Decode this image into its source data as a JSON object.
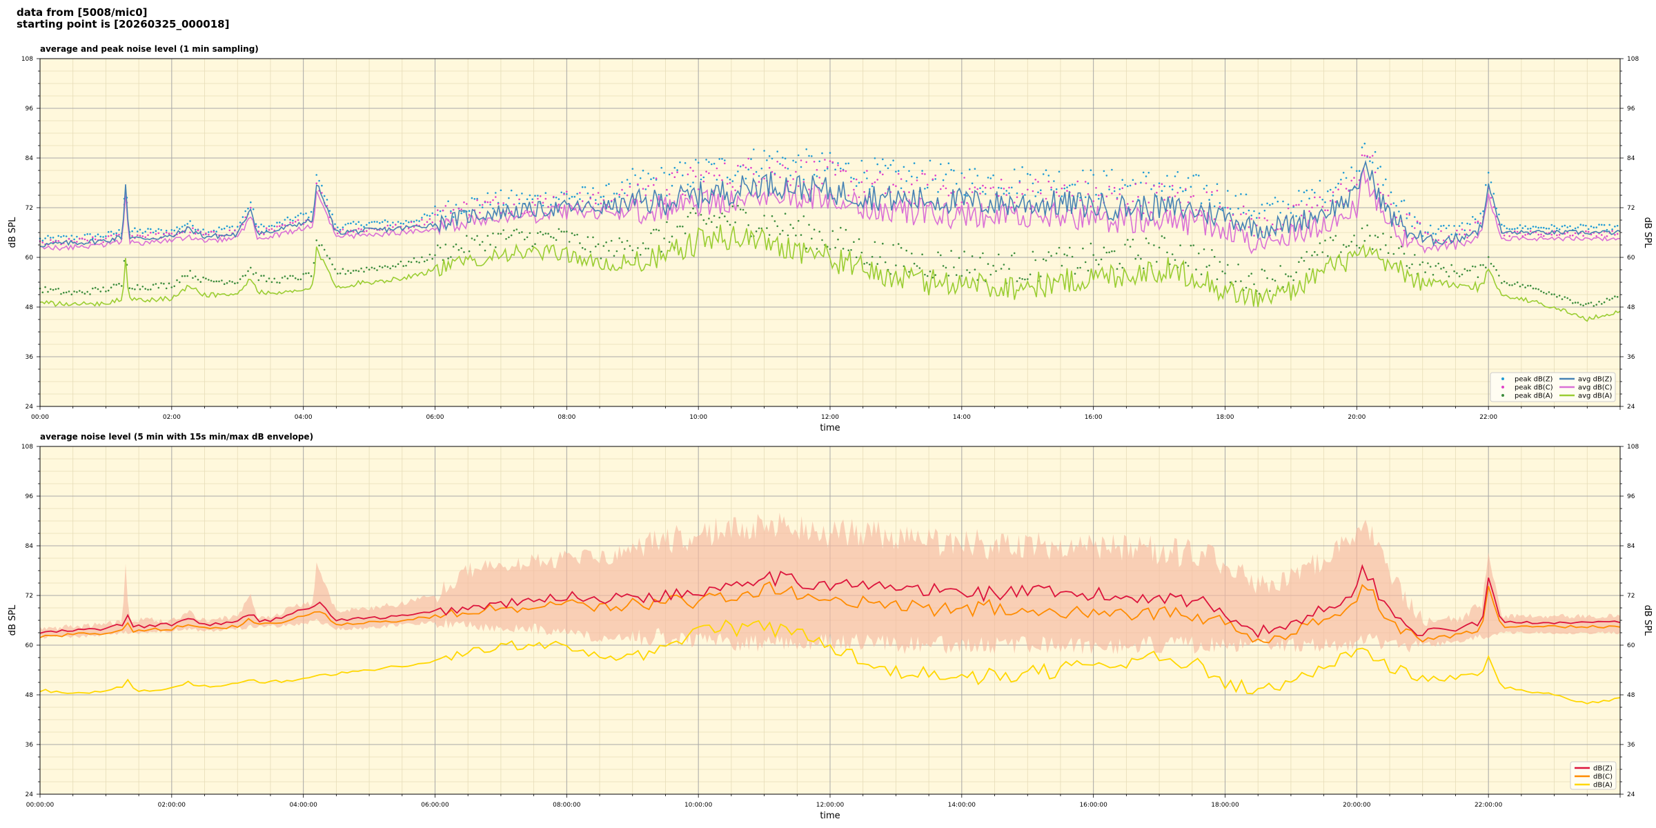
{
  "header": {
    "line1": "data from [5008/mic0]",
    "line2": "starting point is [20260325_000018]"
  },
  "colors": {
    "background": "#fff8dc",
    "peak_z": "#1f9bd4",
    "peak_c": "#e040c8",
    "peak_a": "#3c8c3c",
    "avg_z": "#4682b4",
    "avg_c": "#da70d6",
    "avg_a": "#9acd32",
    "dbz": "#dc143c",
    "dbc": "#ff8c00",
    "dba": "#ffd700",
    "envelope": "#f6b8a0"
  },
  "chart_data": [
    {
      "type": "line",
      "title": "average and peak noise level (1 min sampling)",
      "xlabel": "time",
      "ylabel": "dB SPL",
      "ylim": [
        24,
        108
      ],
      "xlim_hours": [
        0,
        24
      ],
      "yticks": [
        "24",
        "36",
        "48",
        "60",
        "72",
        "84",
        "96",
        "108"
      ],
      "xtick_labels": [
        "00:00",
        "02:00",
        "04:00",
        "06:00",
        "08:00",
        "10:00",
        "12:00",
        "14:00",
        "16:00",
        "18:00",
        "20:00",
        "22:00"
      ],
      "grid": true,
      "legend_position": "bottom-right",
      "legend": [
        "peak dB(Z)",
        "peak dB(C)",
        "peak dB(A)",
        "avg dB(Z)",
        "avg dB(C)",
        "avg dB(A)"
      ],
      "hours": [
        0,
        0.5,
        1,
        1.25,
        1.3,
        1.35,
        1.5,
        2,
        2.25,
        2.5,
        3,
        3.2,
        3.3,
        3.5,
        4,
        4.15,
        4.2,
        4.5,
        5,
        5.5,
        6,
        6.5,
        7,
        7.5,
        8,
        8.5,
        9,
        9.5,
        10,
        10.5,
        11,
        11.5,
        12,
        12.5,
        13,
        13.5,
        14,
        14.5,
        15,
        15.5,
        16,
        16.5,
        17,
        17.5,
        18,
        18.5,
        19,
        19.5,
        20,
        20.1,
        20.5,
        21,
        21.5,
        21.9,
        22,
        22.2,
        22.5,
        23,
        23.5,
        24
      ],
      "series": [
        {
          "name": "avg dB(Z)",
          "values": [
            63,
            63.5,
            64,
            65,
            78,
            65,
            64.5,
            65,
            67,
            65,
            65.5,
            72,
            66,
            66,
            68.5,
            69,
            78,
            66,
            66.5,
            67,
            68,
            70,
            71,
            71.5,
            72,
            72,
            73,
            73.5,
            75,
            76,
            78,
            77,
            76,
            75,
            74,
            74,
            73.5,
            73,
            73,
            73,
            72.5,
            72,
            72,
            71.5,
            70,
            67,
            68,
            71,
            75,
            83,
            70,
            64,
            64.5,
            67,
            78,
            66,
            66,
            66,
            66,
            66
          ]
        },
        {
          "name": "avg dB(C)",
          "values": [
            62,
            62.5,
            63,
            64,
            76,
            64,
            63.5,
            64,
            65,
            64,
            64.5,
            70,
            65,
            65,
            67,
            67.5,
            76,
            65,
            65.5,
            66,
            67,
            69,
            70,
            70,
            71,
            70.5,
            71,
            72,
            73,
            74,
            76,
            75,
            74,
            72,
            71,
            71,
            70,
            70,
            70,
            70,
            69.5,
            69,
            69,
            68.5,
            67,
            62,
            65,
            68,
            72,
            80,
            67,
            62,
            63,
            65.5,
            75,
            64.5,
            64.5,
            64.5,
            64.5,
            64.5
          ]
        },
        {
          "name": "avg dB(A)",
          "values": [
            49,
            48.5,
            49,
            50,
            60,
            50,
            49.5,
            50,
            53,
            51,
            51,
            55,
            52,
            51,
            52,
            53,
            62,
            53,
            54,
            55,
            57,
            59,
            61,
            61,
            61,
            58,
            59,
            60,
            64,
            65,
            64,
            62,
            60,
            57,
            55,
            54,
            54,
            53,
            53,
            54,
            55,
            56,
            57,
            56,
            52,
            50,
            52,
            57,
            60,
            61,
            58,
            54,
            53,
            53,
            57,
            51,
            50,
            48,
            45,
            47
          ]
        },
        {
          "name": "peak dB(Z)",
          "values": [
            64,
            64.5,
            65,
            66,
            80,
            66,
            66,
            66,
            68,
            66,
            67,
            73,
            67,
            67,
            70,
            70,
            80,
            67,
            68,
            68,
            70,
            72,
            73,
            73,
            74,
            74,
            76,
            77,
            79,
            80,
            82,
            81,
            80,
            79,
            78,
            78,
            77,
            77,
            77,
            77,
            76,
            76,
            76,
            75,
            73,
            70,
            71,
            75,
            79,
            88,
            73,
            66,
            66,
            69,
            80,
            67,
            67,
            67,
            67,
            67
          ]
        },
        {
          "name": "peak dB(C)",
          "values": [
            63,
            63.5,
            64,
            65,
            78,
            65,
            65,
            65,
            66.5,
            65,
            66,
            71,
            66,
            66,
            68.5,
            69,
            78,
            66,
            66.5,
            67,
            69,
            71,
            72,
            72,
            73,
            72.5,
            74,
            75,
            77,
            78,
            80,
            79,
            78,
            76,
            75,
            75,
            74,
            74,
            74,
            74,
            73,
            73,
            73,
            72,
            71,
            66,
            68,
            72,
            76,
            86,
            70,
            64,
            64.5,
            67,
            77,
            65.5,
            65.5,
            65.5,
            65.5,
            65.5
          ]
        },
        {
          "name": "peak dB(A)",
          "values": [
            52,
            51,
            52,
            53,
            62,
            53,
            52.5,
            53,
            56,
            54,
            54,
            57,
            55,
            54,
            55,
            56,
            64,
            56,
            57,
            58,
            60,
            62,
            64,
            64,
            64,
            61,
            62,
            63,
            67,
            68,
            67,
            65,
            63,
            60,
            58,
            57,
            57,
            56,
            56,
            57,
            58,
            59,
            60,
            59,
            55,
            53,
            55,
            60,
            63,
            64,
            61,
            57,
            56,
            56,
            60,
            54,
            53,
            51,
            48,
            50
          ]
        }
      ]
    },
    {
      "type": "line",
      "title": "average noise level (5 min with 15s min/max dB envelope)",
      "xlabel": "time",
      "ylabel": "dB SPL",
      "ylim": [
        24,
        108
      ],
      "xlim_hours": [
        0,
        24
      ],
      "yticks": [
        "24",
        "36",
        "48",
        "60",
        "72",
        "84",
        "96",
        "108"
      ],
      "xtick_labels": [
        "00:00:00",
        "02:00:00",
        "04:00:00",
        "06:00:00",
        "08:00:00",
        "10:00:00",
        "12:00:00",
        "14:00:00",
        "16:00:00",
        "18:00:00",
        "20:00:00",
        "22:00:00"
      ],
      "grid": true,
      "legend_position": "bottom-right",
      "legend": [
        "dB(Z)",
        "dB(C)",
        "dB(A)"
      ],
      "hours": [
        0,
        0.5,
        1,
        1.25,
        1.3,
        1.35,
        1.5,
        2,
        2.25,
        2.5,
        3,
        3.2,
        3.3,
        3.5,
        4,
        4.15,
        4.2,
        4.5,
        5,
        5.5,
        6,
        6.5,
        7,
        7.5,
        8,
        8.5,
        9,
        9.5,
        10,
        10.5,
        11,
        11.5,
        12,
        12.5,
        13,
        13.5,
        14,
        14.5,
        15,
        15.5,
        16,
        16.5,
        17,
        17.5,
        18,
        18.5,
        19,
        19.5,
        20,
        20.1,
        20.5,
        21,
        21.5,
        21.9,
        22,
        22.2,
        22.5,
        23,
        23.5,
        24
      ],
      "series": [
        {
          "name": "dB(Z)",
          "values": [
            63,
            63.5,
            64,
            65,
            72,
            64.5,
            64.5,
            65,
            66.5,
            65,
            65.5,
            68,
            66,
            66,
            68.5,
            69,
            71,
            66,
            66.5,
            67,
            68,
            69,
            70,
            70.5,
            72,
            71,
            72,
            72,
            73,
            75,
            77,
            75,
            75,
            74,
            74,
            73,
            73,
            72.5,
            73,
            72,
            72,
            71.5,
            72,
            71,
            68,
            63,
            65,
            69,
            73,
            79,
            68,
            63,
            64,
            65.5,
            76,
            65.5,
            65.5,
            65.5,
            65.5,
            65.5
          ]
        },
        {
          "name": "dB(C)",
          "values": [
            62,
            62.5,
            63,
            64,
            70,
            63.5,
            63.5,
            64,
            65,
            64,
            64.5,
            66.5,
            65,
            65,
            67,
            67.5,
            69,
            65,
            65.5,
            66,
            67,
            68,
            69,
            69,
            70,
            69,
            69.5,
            70,
            71,
            72,
            74,
            72,
            71,
            70,
            70,
            69,
            69,
            69,
            69,
            68.5,
            68.5,
            68,
            68,
            67.5,
            65,
            61,
            63,
            66,
            70,
            76,
            66,
            61,
            62.5,
            64,
            74,
            64.5,
            64.5,
            64.5,
            64.5,
            64.5
          ]
        },
        {
          "name": "dB(A)",
          "values": [
            49,
            48.5,
            49,
            50,
            54,
            50,
            49,
            49.5,
            51,
            50,
            50.5,
            52,
            51,
            51,
            52,
            52.5,
            53,
            53,
            54,
            55,
            56,
            58,
            60,
            60,
            60,
            57,
            58,
            59,
            65,
            64,
            64,
            63,
            60,
            56,
            54,
            53,
            52,
            53,
            53,
            54,
            55,
            55,
            57,
            56,
            51,
            49,
            51,
            55,
            59,
            59,
            55,
            52,
            52,
            52.5,
            57,
            50,
            49,
            48,
            46,
            47
          ]
        },
        {
          "name": "envelope max",
          "values": [
            64,
            64.5,
            65,
            66,
            80,
            66,
            66,
            66,
            68,
            66,
            67,
            72,
            67,
            67,
            70,
            70,
            80,
            68,
            69,
            70,
            72,
            78,
            79,
            80,
            81,
            81,
            83,
            85,
            87,
            88,
            89,
            88,
            87,
            87,
            86,
            85,
            85,
            84,
            84,
            84,
            84,
            83,
            83,
            82,
            80,
            75,
            76,
            81,
            86,
            90,
            78,
            66,
            66,
            70,
            82,
            67,
            67,
            67,
            67,
            67
          ]
        },
        {
          "name": "envelope min",
          "values": [
            62,
            62,
            62.5,
            63,
            63,
            63,
            63,
            63.5,
            64,
            63.5,
            64,
            64.5,
            64.5,
            64.5,
            65,
            66,
            66,
            64,
            64,
            65,
            65.5,
            65,
            64,
            64,
            63,
            62,
            62,
            62,
            61,
            61,
            60,
            61,
            61,
            61,
            60,
            60,
            60,
            60,
            60,
            60,
            60,
            60,
            60,
            60,
            60,
            60,
            60,
            60,
            60,
            62,
            60,
            60,
            61,
            62,
            62,
            63,
            63,
            63,
            63,
            63
          ]
        }
      ]
    }
  ]
}
